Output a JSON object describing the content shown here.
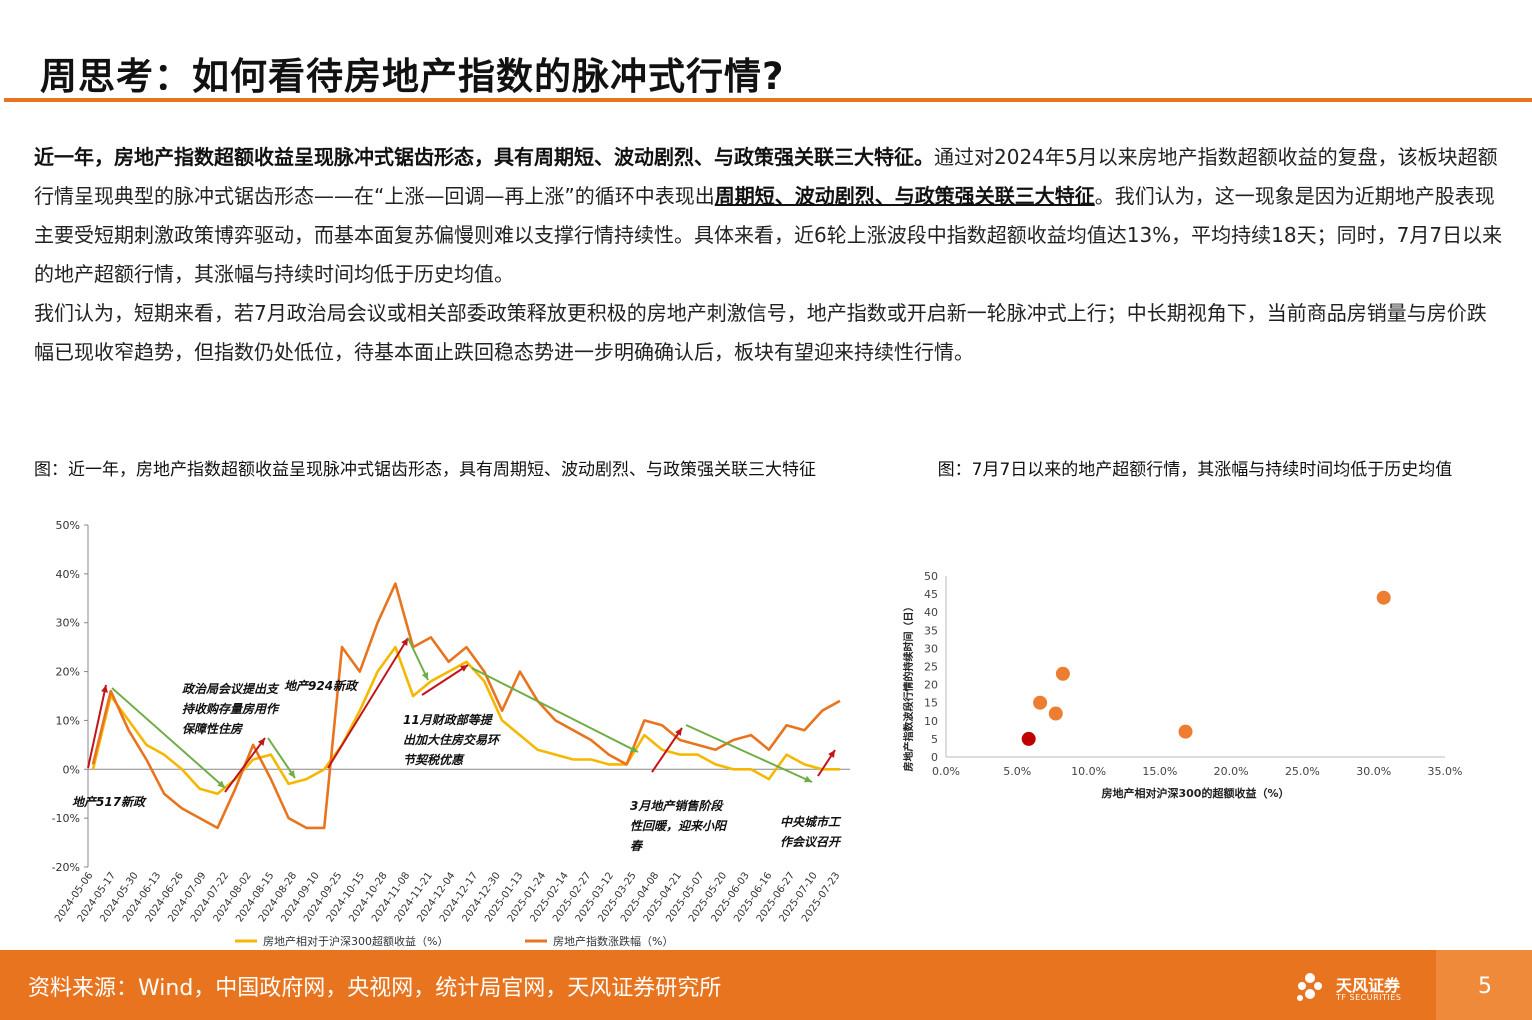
{
  "title": "周思考：如何看待房地产指数的脉冲式行情?",
  "paragraphs": {
    "p1_bold": "近一年，房地产指数超额收益呈现脉冲式锯齿形态，具有周期短、波动剧烈、与政策强关联三大特征。",
    "p1_text1": "通过对2024年5月以来房地产指数超额收益的复盘，该板块超额行情呈现典型的脉冲式锯齿形态——在“上涨—回调—再上涨”的循环中表现出",
    "p1_underline": "周期短、波动剧烈、与政策强关联三大特征",
    "p1_text2": "。我们认为，这一现象是因为近期地产股表现主要受短期刺激政策博弈驱动，而基本面复苏偏慢则难以支撑行情持续性。具体来看，近6轮上涨波段中指数超额收益均值达13%，平均持续18天；同时，7月7日以来的地产超额行情，其涨幅与持续时间均低于历史均值。",
    "p2": "我们认为，短期来看，若7月政治局会议或相关部委政策释放更积极的房地产刺激信号，地产指数或开启新一轮脉冲式上行；中长期视角下，当前商品房销量与房价跌幅已现收窄趋势，但指数仍处低位，待基本面止跌回稳态势进一步明确确认后，板块有望迎来持续性行情。"
  },
  "caption_left": "图：近一年，房地产指数超额收益呈现脉冲式锯齿形态，具有周期短、波动剧烈、与政策强关联三大特征",
  "caption_right": "图：7月7日以来的地产超额行情，其涨幅与持续时间均低于历史均值",
  "chart_data": [
    {
      "type": "line",
      "ylim": [
        -20,
        50
      ],
      "y_ticks": [
        "50%",
        "40%",
        "30%",
        "20%",
        "10%",
        "0%",
        "-10%",
        "-20%"
      ],
      "x_ticks": [
        "2024-05-06",
        "2024-05-17",
        "2024-05-30",
        "2024-06-13",
        "2024-06-26",
        "2024-07-09",
        "2024-07-22",
        "2024-08-02",
        "2024-08-15",
        "2024-08-28",
        "2024-09-10",
        "2024-09-25",
        "2024-10-15",
        "2024-10-28",
        "2024-11-08",
        "2024-11-21",
        "2024-12-04",
        "2024-12-17",
        "2024-12-30",
        "2025-01-13",
        "2025-01-24",
        "2025-02-14",
        "2025-02-27",
        "2025-03-12",
        "2025-03-25",
        "2025-04-08",
        "2025-04-21",
        "2025-05-07",
        "2025-05-20",
        "2025-06-03",
        "2025-06-16",
        "2025-06-27",
        "2025-07-10",
        "2025-07-23"
      ],
      "series": [
        {
          "name": "房地产相对于沪深300超额收益（%）",
          "color": "#f5b800",
          "values": [
            0,
            15,
            10,
            5,
            3,
            0,
            -4,
            -5,
            -2,
            2,
            3,
            -3,
            -2,
            0,
            5,
            12,
            20,
            25,
            15,
            18,
            20,
            22,
            18,
            10,
            7,
            4,
            3,
            2,
            2,
            1,
            1,
            7,
            4,
            3,
            3,
            1,
            0,
            0,
            -2,
            3,
            1,
            0,
            0
          ]
        },
        {
          "name": "房地产指数涨跌幅（%）",
          "color": "#e9741f",
          "values": [
            1,
            16,
            8,
            2,
            -5,
            -8,
            -10,
            -12,
            -4,
            5,
            -2,
            -10,
            -12,
            -12,
            25,
            20,
            30,
            38,
            25,
            27,
            22,
            25,
            20,
            12,
            20,
            14,
            10,
            8,
            6,
            3,
            1,
            10,
            9,
            6,
            5,
            4,
            6,
            7,
            4,
            9,
            8,
            12,
            14
          ]
        }
      ],
      "annotations": [
        "地产517新政",
        "政治局会议提出支持收购存量房用作保障性住房",
        "地产924新政",
        "11月财政部等提出加大住房交易环节契税优惠",
        "3月地产销售阶段性回暖，迎来小阳春",
        "中央城市工作会议召开"
      ]
    },
    {
      "type": "scatter",
      "xlabel": "房地产相对沪深300的超额收益（%）",
      "ylabel": "房地产指数波段行情的持续时间（日）",
      "xlim": [
        0,
        35
      ],
      "ylim": [
        0,
        50
      ],
      "x_ticks": [
        "0.0%",
        "5.0%",
        "10.0%",
        "15.0%",
        "20.0%",
        "25.0%",
        "30.0%",
        "35.0%"
      ],
      "y_ticks": [
        "0",
        "5",
        "10",
        "15",
        "20",
        "25",
        "30",
        "35",
        "40",
        "45",
        "50"
      ],
      "points": [
        {
          "x": 5.8,
          "y": 5,
          "highlight": true
        },
        {
          "x": 6.6,
          "y": 15
        },
        {
          "x": 7.7,
          "y": 12
        },
        {
          "x": 8.2,
          "y": 23
        },
        {
          "x": 16.8,
          "y": 7
        },
        {
          "x": 30.7,
          "y": 44
        }
      ]
    }
  ],
  "footer": {
    "source": "资料来源：Wind，中国政府网，央视网，统计局官网，天风证券研究所",
    "logo_name": "天风证券",
    "logo_sub": "TF SECURITIES",
    "page": "5"
  },
  "colors": {
    "accent": "#e9741f",
    "yellow": "#f5b800",
    "arrow_red": "#c0151b",
    "arrow_green": "#70ad47",
    "highlight": "#c00000"
  }
}
